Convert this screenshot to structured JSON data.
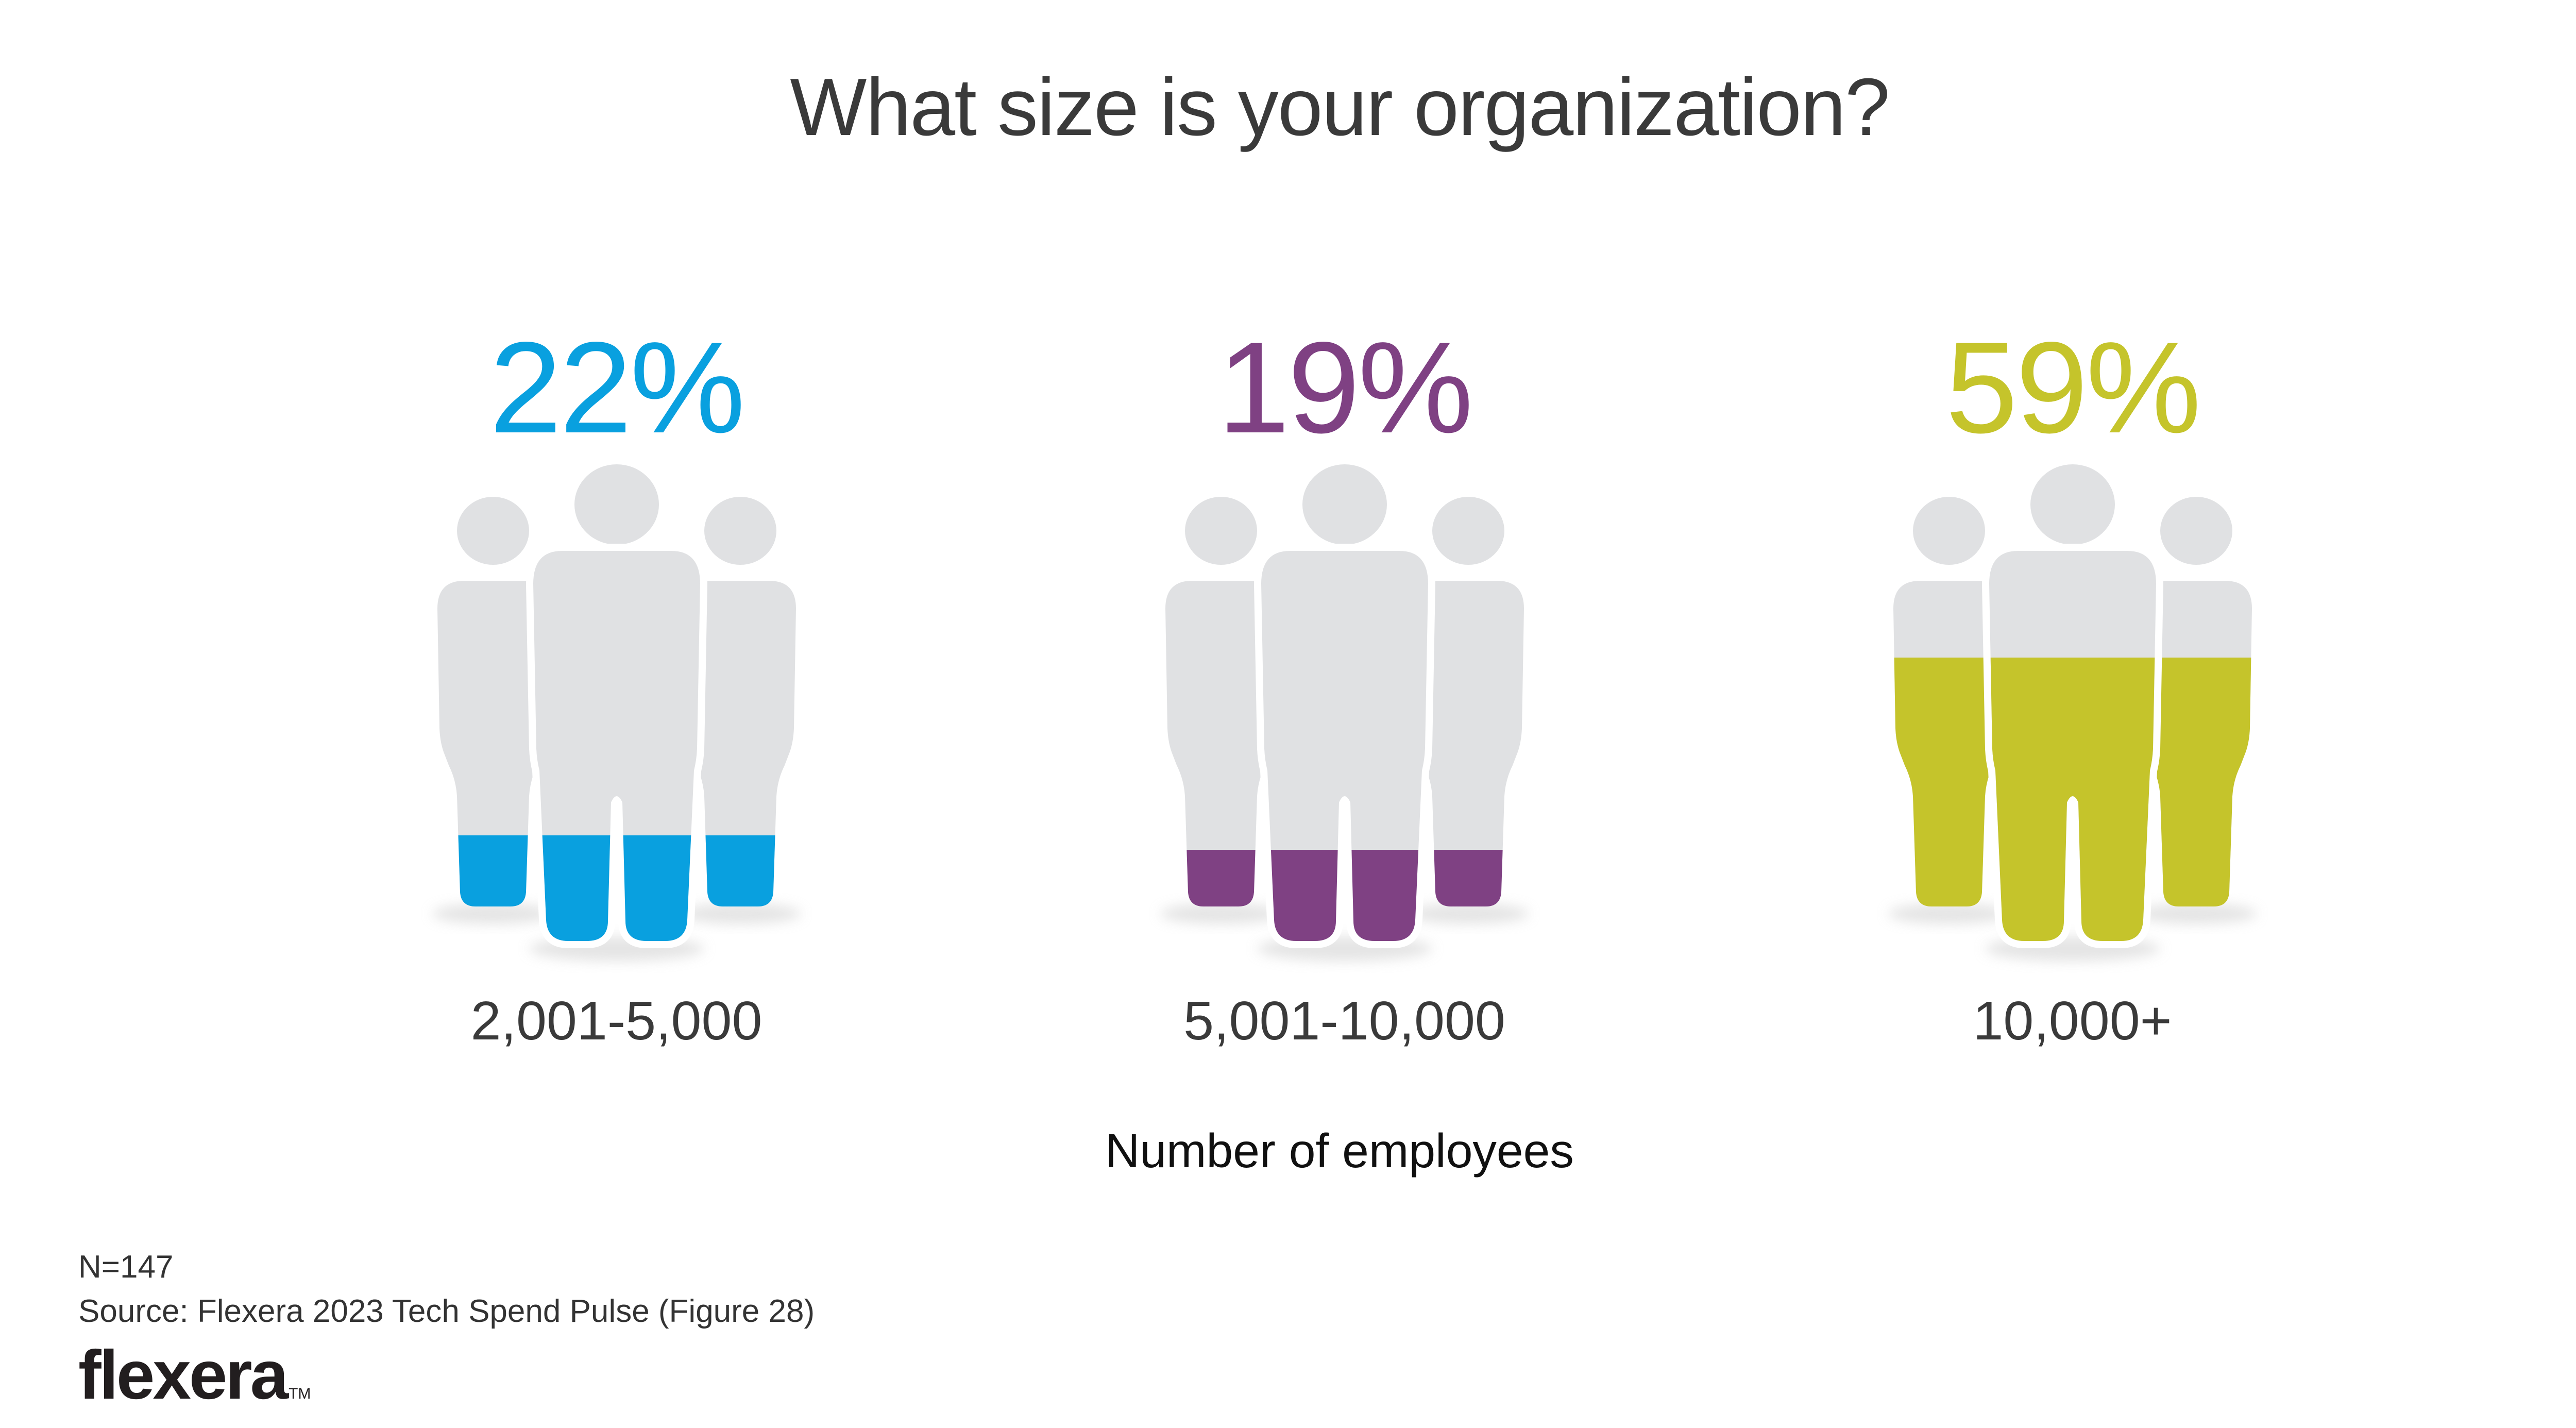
{
  "title": "What size is your organization?",
  "axis_label": "Number of employees",
  "footnote": {
    "n": "N=147",
    "source": "Source: Flexera 2023 Tech Spend Pulse (Figure 28)"
  },
  "brand": {
    "logo": "flexera",
    "tm": "TM"
  },
  "colors": {
    "title_text": "#3a3a3a",
    "label_text": "#3a3a3a",
    "axis_label_text": "#101010",
    "footnote_text": "#333333",
    "logo_text": "#221e1f",
    "figure_gray": "#e0e1e3",
    "shadow": "#cfcfcf",
    "blue": "#09a0df",
    "purple": "#7f4183",
    "citron": "#c5c42b"
  },
  "columns": [
    {
      "percent": "22%",
      "value": 22,
      "label": "2,001-5,000",
      "color": "#09a0df"
    },
    {
      "percent": "19%",
      "value": 19,
      "label": "5,001-10,000",
      "color": "#7f4183"
    },
    {
      "percent": "59%",
      "value": 59,
      "label": "10,000+",
      "color": "#c5c42b"
    }
  ],
  "chart_data": {
    "type": "pictograph",
    "title": "What size is your organization?",
    "xlabel": "Number of employees",
    "categories": [
      "2,001-5,000",
      "5,001-10,000",
      "10,000+"
    ],
    "values": [
      22,
      19,
      59
    ],
    "unit": "%",
    "series_colors": [
      "#09a0df",
      "#7f4183",
      "#c5c42b"
    ],
    "sample_size": "N=147",
    "source": "Source: Flexera 2023 Tech Spend Pulse (Figure 28)",
    "legend": "off",
    "grid": "off",
    "icon": "three-person group filled from bottom to percentage level"
  }
}
